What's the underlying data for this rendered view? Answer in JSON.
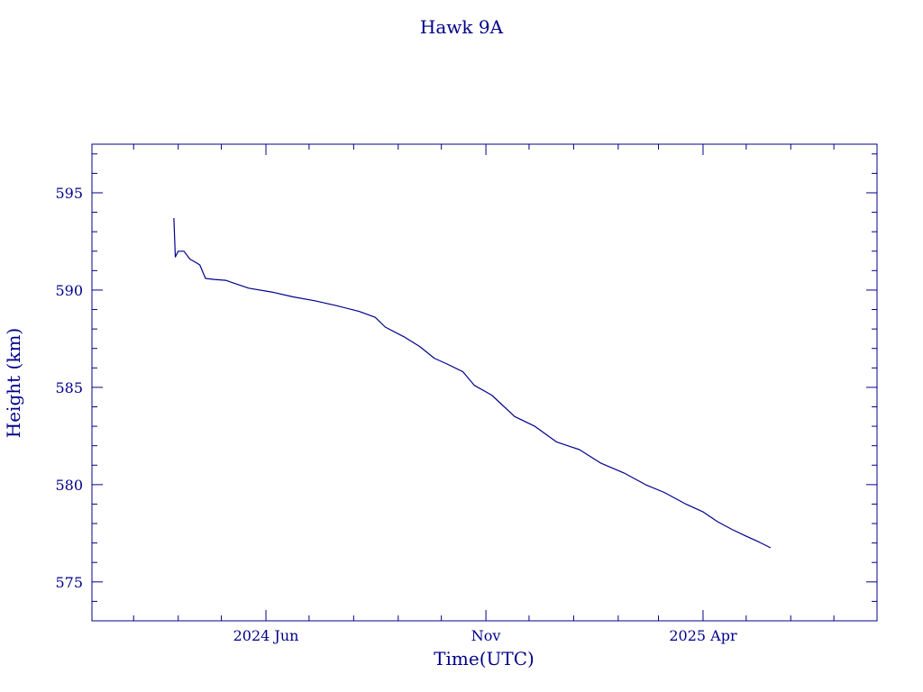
{
  "chart_data": {
    "type": "line",
    "title": "Hawk 9A",
    "xlabel": "Time(UTC)",
    "ylabel": "Height (km)",
    "color": "#00008b",
    "x_range": [
      "2024-02-01",
      "2025-07-31"
    ],
    "ylim": [
      573,
      597.5
    ],
    "yticks": [
      575,
      580,
      585,
      590,
      595
    ],
    "xticks": [
      {
        "label": "2024 Jun",
        "date": "2024-06-01"
      },
      {
        "label": "Nov",
        "date": "2024-11-01"
      },
      {
        "label": "2025 Apr",
        "date": "2025-04-01"
      }
    ],
    "series": [
      {
        "points": [
          {
            "x": "2024-03-29",
            "y": 593.7
          },
          {
            "x": "2024-03-30",
            "y": 591.7
          },
          {
            "x": "2024-04-01",
            "y": 592.0
          },
          {
            "x": "2024-04-05",
            "y": 592.0
          },
          {
            "x": "2024-04-09",
            "y": 591.6
          },
          {
            "x": "2024-04-16",
            "y": 591.3
          },
          {
            "x": "2024-04-20",
            "y": 590.6
          },
          {
            "x": "2024-04-26",
            "y": 590.55
          },
          {
            "x": "2024-05-04",
            "y": 590.5
          },
          {
            "x": "2024-05-20",
            "y": 590.1
          },
          {
            "x": "2024-06-05",
            "y": 589.9
          },
          {
            "x": "2024-06-20",
            "y": 589.65
          },
          {
            "x": "2024-07-05",
            "y": 589.45
          },
          {
            "x": "2024-07-20",
            "y": 589.2
          },
          {
            "x": "2024-08-05",
            "y": 588.9
          },
          {
            "x": "2024-08-16",
            "y": 588.6
          },
          {
            "x": "2024-08-23",
            "y": 588.1
          },
          {
            "x": "2024-09-05",
            "y": 587.6
          },
          {
            "x": "2024-09-16",
            "y": 587.1
          },
          {
            "x": "2024-09-26",
            "y": 586.5
          },
          {
            "x": "2024-10-05",
            "y": 586.2
          },
          {
            "x": "2024-10-16",
            "y": 585.8
          },
          {
            "x": "2024-10-24",
            "y": 585.1
          },
          {
            "x": "2024-11-05",
            "y": 584.6
          },
          {
            "x": "2024-11-21",
            "y": 583.5
          },
          {
            "x": "2024-12-05",
            "y": 583.0
          },
          {
            "x": "2024-12-20",
            "y": 582.2
          },
          {
            "x": "2025-01-05",
            "y": 581.8
          },
          {
            "x": "2025-01-20",
            "y": 581.1
          },
          {
            "x": "2025-02-05",
            "y": 580.6
          },
          {
            "x": "2025-02-20",
            "y": 580.0
          },
          {
            "x": "2025-03-05",
            "y": 579.6
          },
          {
            "x": "2025-03-20",
            "y": 579.0
          },
          {
            "x": "2025-04-01",
            "y": 578.6
          },
          {
            "x": "2025-04-11",
            "y": 578.1
          },
          {
            "x": "2025-04-21",
            "y": 577.7
          },
          {
            "x": "2025-05-01",
            "y": 577.35
          },
          {
            "x": "2025-05-10",
            "y": 577.05
          },
          {
            "x": "2025-05-18",
            "y": 576.75
          }
        ]
      }
    ]
  }
}
